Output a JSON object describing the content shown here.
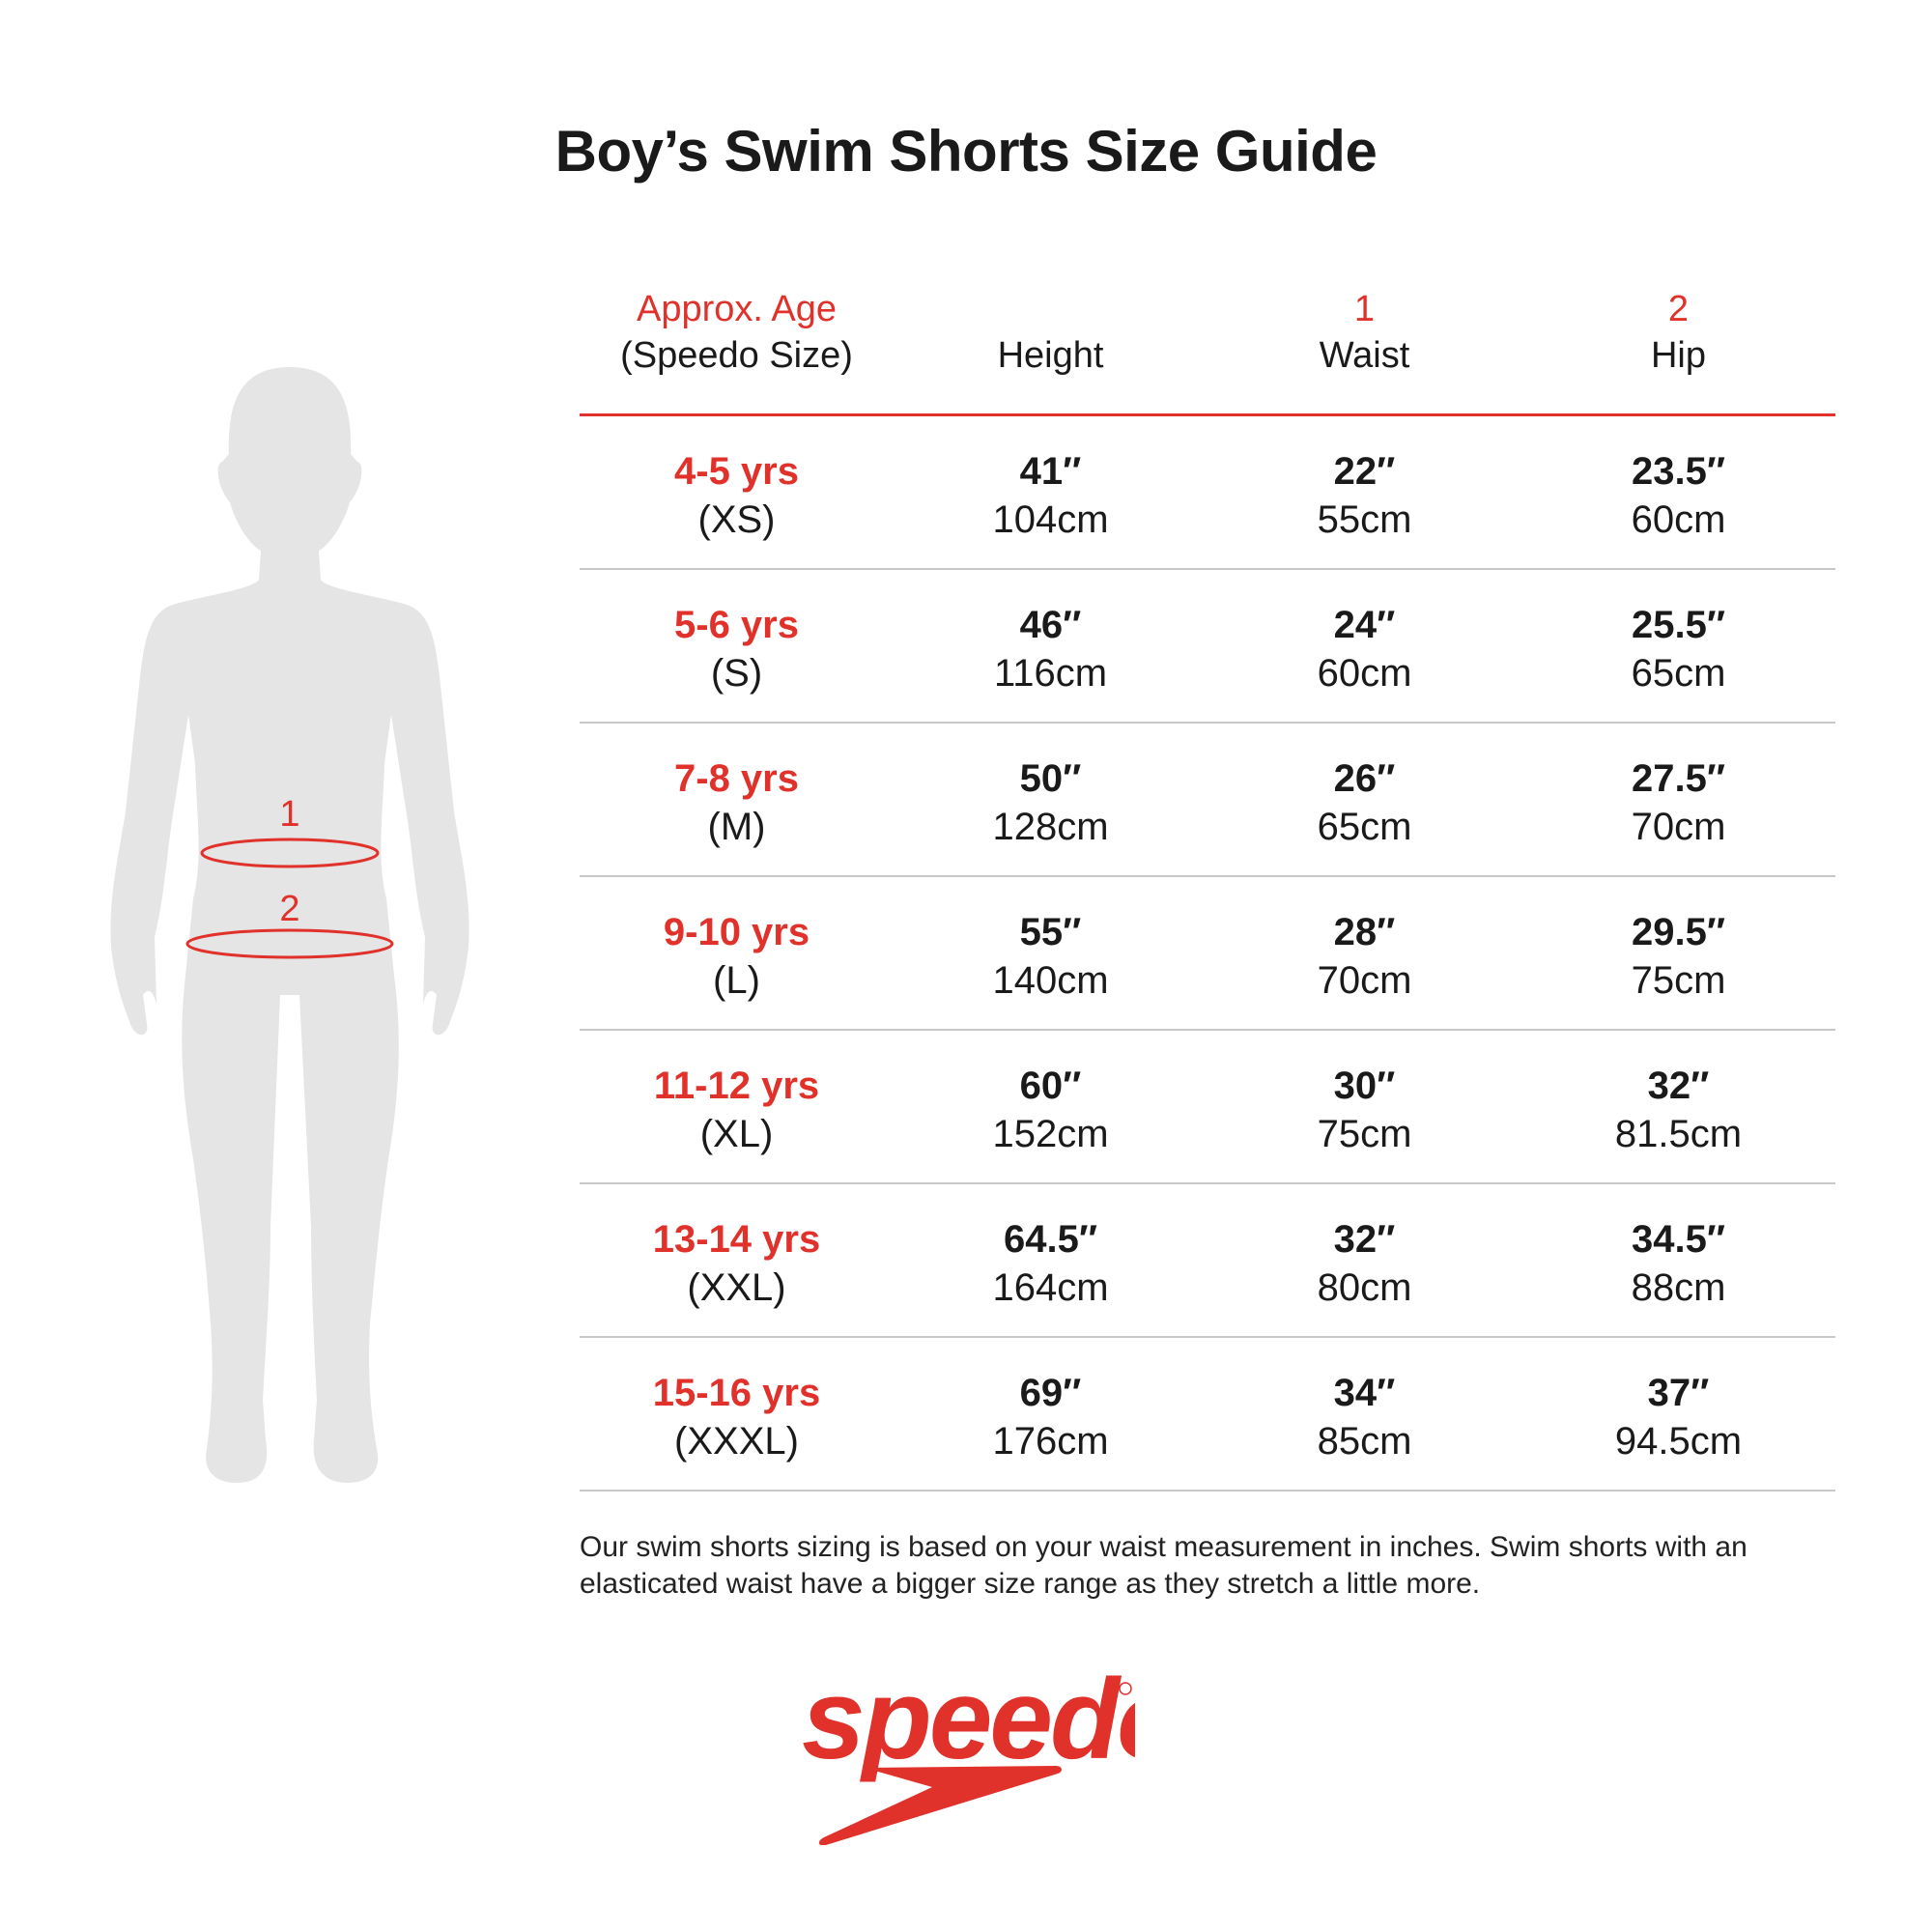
{
  "title": "Boy’s Swim Shorts Size Guide",
  "colors": {
    "accent": "#e0312a",
    "silhouette": "#e5e5e5",
    "text": "#1a1a1a"
  },
  "figure": {
    "marker_1": "1",
    "marker_2": "2"
  },
  "table": {
    "headers": [
      {
        "top": "Approx. Age",
        "bottom": "(Speedo Size)"
      },
      {
        "top": "",
        "bottom": "Height"
      },
      {
        "top": "1",
        "bottom": "Waist"
      },
      {
        "top": "2",
        "bottom": "Hip"
      }
    ],
    "rows": [
      {
        "age": "4-5 yrs",
        "size": "(XS)",
        "height_in": "41″",
        "height_cm": "104cm",
        "waist_in": "22″",
        "waist_cm": "55cm",
        "hip_in": "23.5″",
        "hip_cm": "60cm"
      },
      {
        "age": "5-6 yrs",
        "size": "(S)",
        "height_in": "46″",
        "height_cm": "116cm",
        "waist_in": "24″",
        "waist_cm": "60cm",
        "hip_in": "25.5″",
        "hip_cm": "65cm"
      },
      {
        "age": "7-8 yrs",
        "size": "(M)",
        "height_in": "50″",
        "height_cm": "128cm",
        "waist_in": "26″",
        "waist_cm": "65cm",
        "hip_in": "27.5″",
        "hip_cm": "70cm"
      },
      {
        "age": "9-10 yrs",
        "size": "(L)",
        "height_in": "55″",
        "height_cm": "140cm",
        "waist_in": "28″",
        "waist_cm": "70cm",
        "hip_in": "29.5″",
        "hip_cm": "75cm"
      },
      {
        "age": "11-12 yrs",
        "size": "(XL)",
        "height_in": "60″",
        "height_cm": "152cm",
        "waist_in": "30″",
        "waist_cm": "75cm",
        "hip_in": "32″",
        "hip_cm": "81.5cm"
      },
      {
        "age": "13-14 yrs",
        "size": "(XXL)",
        "height_in": "64.5″",
        "height_cm": "164cm",
        "waist_in": "32″",
        "waist_cm": "80cm",
        "hip_in": "34.5″",
        "hip_cm": "88cm"
      },
      {
        "age": "15-16 yrs",
        "size": "(XXXL)",
        "height_in": "69″",
        "height_cm": "176cm",
        "waist_in": "34″",
        "waist_cm": "85cm",
        "hip_in": "37″",
        "hip_cm": "94.5cm"
      }
    ]
  },
  "note": "Our swim shorts sizing is based on your waist measurement in inches. Swim shorts with an elasticated waist have a bigger size range as they stretch a little more.",
  "logo": {
    "text": "speedo"
  }
}
